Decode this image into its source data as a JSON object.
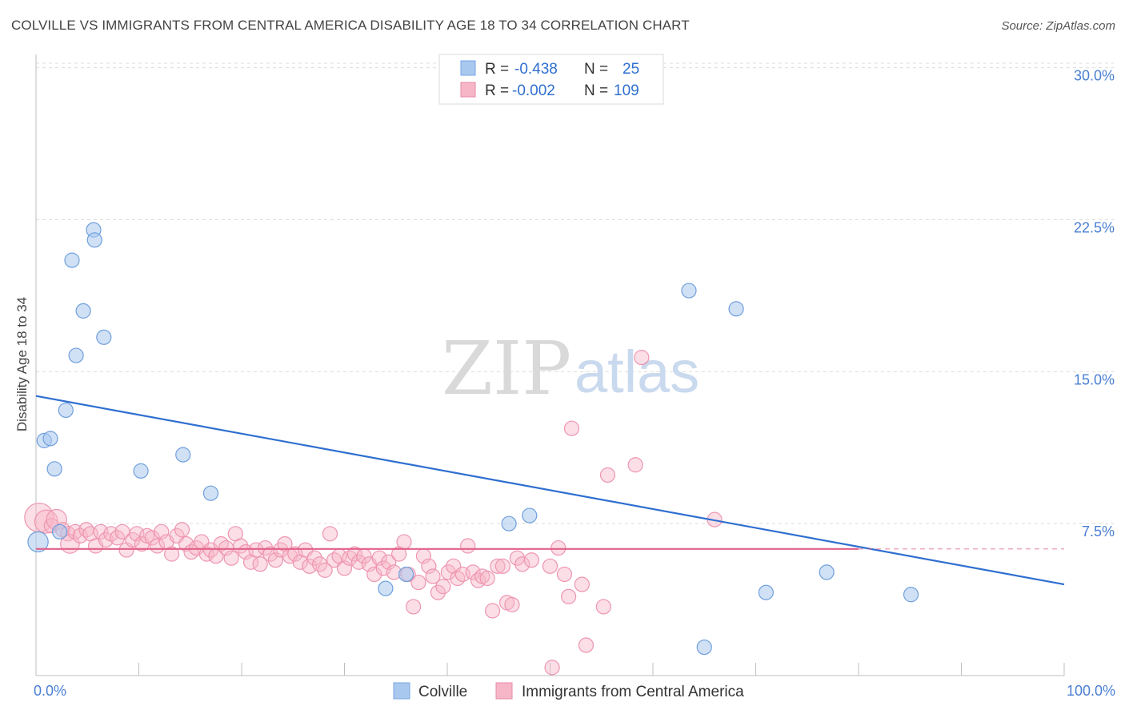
{
  "header": {
    "title": "COLVILLE VS IMMIGRANTS FROM CENTRAL AMERICA DISABILITY AGE 18 TO 34 CORRELATION CHART",
    "source": "Source: ZipAtlas.com"
  },
  "watermark": {
    "zip": "ZIP",
    "atlas": "atlas"
  },
  "legend": {
    "rows": [
      {
        "r_label": "R =",
        "r_value": "-0.438",
        "n_label": "N =",
        "n_value": "25",
        "color": "#a9c8ef"
      },
      {
        "r_label": "R =",
        "r_value": "-0.002",
        "n_label": "N =",
        "n_value": "109",
        "color": "#f6b6c8"
      }
    ]
  },
  "bottom_legend": [
    "Colville",
    "Immigrants from Central America"
  ],
  "chart_data": {
    "type": "scatter",
    "title": "COLVILLE VS IMMIGRANTS FROM CENTRAL AMERICA DISABILITY AGE 18 TO 34 CORRELATION CHART",
    "xlabel": "",
    "ylabel": "Disability Age 18 to 34",
    "xlim": [
      0,
      100
    ],
    "ylim": [
      0,
      30.5
    ],
    "x_tick_labels": [
      "0.0%",
      "100.0%"
    ],
    "y_ticks": [
      7.5,
      15.0,
      22.5,
      30.0
    ],
    "y_tick_labels": [
      "7.5%",
      "15.0%",
      "22.5%",
      "30.0%"
    ],
    "grid": true,
    "legend_position": "top-center",
    "colors": {
      "colville": "#a9c8ef",
      "colville_line": "#2f6fd0",
      "immigrants": "#f6b6c8",
      "immigrants_line": "#e0608a"
    },
    "series": [
      {
        "name": "Colville",
        "r": -0.438,
        "n": 25,
        "trend": {
          "x": [
            0,
            100
          ],
          "y": [
            13.8,
            4.5
          ]
        },
        "points": [
          {
            "x": 0.2,
            "y": 6.6,
            "s": 1.4
          },
          {
            "x": 0.8,
            "y": 11.6
          },
          {
            "x": 1.4,
            "y": 11.7
          },
          {
            "x": 1.8,
            "y": 10.2
          },
          {
            "x": 2.3,
            "y": 7.1
          },
          {
            "x": 2.9,
            "y": 13.1
          },
          {
            "x": 3.5,
            "y": 20.5
          },
          {
            "x": 3.9,
            "y": 15.8
          },
          {
            "x": 4.6,
            "y": 18.0
          },
          {
            "x": 5.6,
            "y": 22.0
          },
          {
            "x": 5.7,
            "y": 21.5
          },
          {
            "x": 6.6,
            "y": 16.7
          },
          {
            "x": 10.2,
            "y": 10.1
          },
          {
            "x": 14.3,
            "y": 10.9
          },
          {
            "x": 17.0,
            "y": 9.0
          },
          {
            "x": 34.0,
            "y": 4.3
          },
          {
            "x": 36.0,
            "y": 5.0
          },
          {
            "x": 46.0,
            "y": 7.5
          },
          {
            "x": 48.0,
            "y": 7.9
          },
          {
            "x": 63.5,
            "y": 19.0
          },
          {
            "x": 65.0,
            "y": 1.4
          },
          {
            "x": 68.1,
            "y": 18.1
          },
          {
            "x": 71.0,
            "y": 4.1
          },
          {
            "x": 76.9,
            "y": 5.1
          },
          {
            "x": 85.1,
            "y": 4.0
          }
        ]
      },
      {
        "name": "Immigrants from Central America",
        "r": -0.002,
        "n": 109,
        "trend": {
          "x": [
            0,
            80
          ],
          "y": [
            6.25,
            6.25
          ],
          "dashed_to": 100
        },
        "points": [
          {
            "x": 0.3,
            "y": 7.8,
            "s": 2.0
          },
          {
            "x": 1.0,
            "y": 7.6,
            "s": 1.6
          },
          {
            "x": 1.5,
            "y": 7.4
          },
          {
            "x": 2.0,
            "y": 7.7,
            "s": 1.4
          },
          {
            "x": 2.6,
            "y": 7.2
          },
          {
            "x": 3.1,
            "y": 7.0
          },
          {
            "x": 3.3,
            "y": 6.5,
            "s": 1.3
          },
          {
            "x": 3.8,
            "y": 7.1
          },
          {
            "x": 4.3,
            "y": 6.9
          },
          {
            "x": 4.9,
            "y": 7.2
          },
          {
            "x": 5.3,
            "y": 7.0
          },
          {
            "x": 5.8,
            "y": 6.4
          },
          {
            "x": 6.3,
            "y": 7.1
          },
          {
            "x": 6.8,
            "y": 6.7
          },
          {
            "x": 7.3,
            "y": 7.0
          },
          {
            "x": 7.9,
            "y": 6.8
          },
          {
            "x": 8.4,
            "y": 7.1
          },
          {
            "x": 8.8,
            "y": 6.2
          },
          {
            "x": 9.4,
            "y": 6.7
          },
          {
            "x": 9.8,
            "y": 7.0
          },
          {
            "x": 10.3,
            "y": 6.5
          },
          {
            "x": 10.8,
            "y": 6.9
          },
          {
            "x": 11.3,
            "y": 6.8
          },
          {
            "x": 11.8,
            "y": 6.4
          },
          {
            "x": 12.2,
            "y": 7.1
          },
          {
            "x": 12.7,
            "y": 6.6
          },
          {
            "x": 13.2,
            "y": 6.0
          },
          {
            "x": 13.7,
            "y": 6.9
          },
          {
            "x": 14.2,
            "y": 7.2
          },
          {
            "x": 14.6,
            "y": 6.5
          },
          {
            "x": 15.1,
            "y": 6.1
          },
          {
            "x": 15.6,
            "y": 6.3
          },
          {
            "x": 16.1,
            "y": 6.6
          },
          {
            "x": 16.6,
            "y": 6.0
          },
          {
            "x": 17.0,
            "y": 6.2
          },
          {
            "x": 17.5,
            "y": 5.9
          },
          {
            "x": 18.0,
            "y": 6.5
          },
          {
            "x": 18.5,
            "y": 6.3
          },
          {
            "x": 19.0,
            "y": 5.8
          },
          {
            "x": 19.4,
            "y": 7.0
          },
          {
            "x": 19.9,
            "y": 6.4
          },
          {
            "x": 20.4,
            "y": 6.1
          },
          {
            "x": 20.9,
            "y": 5.6
          },
          {
            "x": 21.4,
            "y": 6.2
          },
          {
            "x": 21.8,
            "y": 5.5
          },
          {
            "x": 22.3,
            "y": 6.3
          },
          {
            "x": 22.8,
            "y": 6.0
          },
          {
            "x": 23.3,
            "y": 5.7
          },
          {
            "x": 23.8,
            "y": 6.2
          },
          {
            "x": 24.2,
            "y": 6.5
          },
          {
            "x": 24.7,
            "y": 5.9
          },
          {
            "x": 25.2,
            "y": 6.0
          },
          {
            "x": 25.7,
            "y": 5.6
          },
          {
            "x": 26.2,
            "y": 6.2
          },
          {
            "x": 26.6,
            "y": 5.4
          },
          {
            "x": 27.1,
            "y": 5.8
          },
          {
            "x": 27.6,
            "y": 5.5
          },
          {
            "x": 28.1,
            "y": 5.2
          },
          {
            "x": 28.6,
            "y": 7.0
          },
          {
            "x": 29.0,
            "y": 5.7
          },
          {
            "x": 29.5,
            "y": 5.9
          },
          {
            "x": 30.0,
            "y": 5.3
          },
          {
            "x": 30.5,
            "y": 5.8
          },
          {
            "x": 31.0,
            "y": 6.0
          },
          {
            "x": 31.4,
            "y": 5.6
          },
          {
            "x": 31.9,
            "y": 5.9
          },
          {
            "x": 32.4,
            "y": 5.5
          },
          {
            "x": 32.9,
            "y": 5.0
          },
          {
            "x": 33.4,
            "y": 5.8
          },
          {
            "x": 33.8,
            "y": 5.3
          },
          {
            "x": 34.3,
            "y": 5.6
          },
          {
            "x": 34.8,
            "y": 5.1
          },
          {
            "x": 35.3,
            "y": 6.0
          },
          {
            "x": 35.8,
            "y": 6.6
          },
          {
            "x": 36.2,
            "y": 5.0
          },
          {
            "x": 36.7,
            "y": 3.4
          },
          {
            "x": 37.2,
            "y": 4.6
          },
          {
            "x": 37.7,
            "y": 5.9
          },
          {
            "x": 38.2,
            "y": 5.4
          },
          {
            "x": 38.6,
            "y": 4.9
          },
          {
            "x": 39.1,
            "y": 4.1
          },
          {
            "x": 39.6,
            "y": 4.4
          },
          {
            "x": 40.1,
            "y": 5.1
          },
          {
            "x": 40.6,
            "y": 5.4
          },
          {
            "x": 41.0,
            "y": 4.8
          },
          {
            "x": 41.5,
            "y": 5.0
          },
          {
            "x": 42.0,
            "y": 6.4
          },
          {
            "x": 42.5,
            "y": 5.1
          },
          {
            "x": 43.0,
            "y": 4.7
          },
          {
            "x": 43.4,
            "y": 4.9
          },
          {
            "x": 43.9,
            "y": 4.8
          },
          {
            "x": 44.4,
            "y": 3.2
          },
          {
            "x": 44.9,
            "y": 5.4
          },
          {
            "x": 45.4,
            "y": 5.4
          },
          {
            "x": 45.8,
            "y": 3.6
          },
          {
            "x": 46.3,
            "y": 3.5
          },
          {
            "x": 46.8,
            "y": 5.8
          },
          {
            "x": 47.3,
            "y": 5.5
          },
          {
            "x": 48.2,
            "y": 5.7
          },
          {
            "x": 50.0,
            "y": 5.4
          },
          {
            "x": 50.2,
            "y": 0.4
          },
          {
            "x": 51.4,
            "y": 5.0
          },
          {
            "x": 51.8,
            "y": 3.9
          },
          {
            "x": 53.1,
            "y": 4.5
          },
          {
            "x": 53.5,
            "y": 1.5
          },
          {
            "x": 55.2,
            "y": 3.4
          },
          {
            "x": 55.6,
            "y": 9.9
          },
          {
            "x": 52.1,
            "y": 12.2
          },
          {
            "x": 58.3,
            "y": 10.4
          },
          {
            "x": 58.9,
            "y": 15.7
          },
          {
            "x": 66.0,
            "y": 7.7
          },
          {
            "x": 50.8,
            "y": 6.3
          }
        ]
      }
    ]
  }
}
